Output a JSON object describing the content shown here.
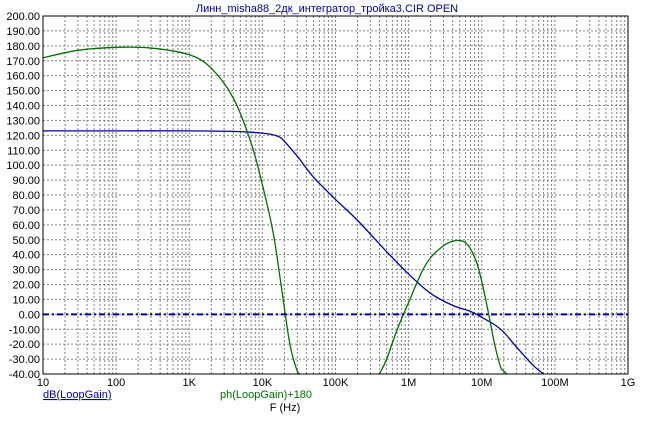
{
  "window": {
    "background": "#ffffff"
  },
  "chart_data": {
    "type": "line",
    "title": "Линн_misha88_2дк_интегратор_тройка3.CIR OPEN",
    "xlabel": "F (Hz)",
    "ylabel": "",
    "xscale": "log",
    "xlim": [
      10,
      1000000000
    ],
    "ylim": [
      -40,
      200
    ],
    "grid": true,
    "x_ticks": [
      {
        "value": 10,
        "label": "10"
      },
      {
        "value": 100,
        "label": "100"
      },
      {
        "value": 1000,
        "label": "1K"
      },
      {
        "value": 10000,
        "label": "10K"
      },
      {
        "value": 100000,
        "label": "100K"
      },
      {
        "value": 1000000,
        "label": "1M"
      },
      {
        "value": 10000000,
        "label": "10M"
      },
      {
        "value": 100000000,
        "label": "100M"
      },
      {
        "value": 1000000000,
        "label": "1G"
      }
    ],
    "y_ticks": [
      200,
      190,
      180,
      170,
      160,
      150,
      140,
      130,
      120,
      110,
      100,
      90,
      80,
      70,
      60,
      50,
      40,
      30,
      20,
      10,
      0,
      -10,
      -20,
      -30,
      -40
    ],
    "y_tick_labels": [
      "200.00",
      "190.00",
      "180.00",
      "170.00",
      "160.00",
      "150.00",
      "140.00",
      "130.00",
      "120.00",
      "110.00",
      "100.00",
      "90.00",
      "80.00",
      "70.00",
      "60.00",
      "50.00",
      "40.00",
      "30.00",
      "20.00",
      "10.00",
      "0.00",
      "-10.00",
      "-20.00",
      "-30.00",
      "-40.00"
    ],
    "series": [
      {
        "name": "dB(LoopGain)",
        "color": "#0000a0",
        "x": [
          10,
          100,
          1000,
          5000,
          12000,
          17000,
          20000,
          30000,
          50000,
          100000,
          200000,
          500000,
          1000000,
          2000000,
          4000000,
          7000000,
          10000000,
          15000000,
          20000000,
          30000000,
          50000000,
          70000000
        ],
        "y": [
          123,
          123,
          123,
          122.5,
          121,
          119,
          116,
          106,
          92,
          77,
          63,
          42,
          27,
          14,
          6,
          2,
          -2,
          -7,
          -12,
          -22,
          -34,
          -40
        ]
      },
      {
        "name": "ph(LoopGain)+180",
        "color": "#007000",
        "x": [
          10,
          30,
          100,
          300,
          1000,
          2000,
          4000,
          7000,
          10000,
          14000,
          18000,
          22000,
          25000,
          30000,
          33000
        ],
        "y": [
          172,
          177,
          179,
          178.5,
          174,
          165,
          145,
          115,
          87,
          55,
          20,
          -10,
          -25,
          -38,
          -40
        ]
      },
      {
        "name": "ph(LoopGain)+180",
        "color": "#007000",
        "x": [
          400000,
          500000,
          700000,
          1000000,
          1500000,
          2000000,
          3000000,
          4000000,
          5000000,
          6000000,
          7000000,
          8500000,
          10000000,
          12000000,
          15000000,
          18000000,
          20000000,
          22000000
        ],
        "y": [
          -40,
          -30,
          -10,
          8,
          28,
          38,
          46,
          49,
          49.5,
          48,
          44,
          35,
          22,
          4,
          -20,
          -35,
          -38,
          -40
        ]
      },
      {
        "name": "",
        "color": "#0000a0",
        "style": "dash-dot",
        "x": [
          10,
          1000000000
        ],
        "y": [
          0,
          0
        ]
      }
    ],
    "legend": [
      {
        "label": "dB(LoopGain)",
        "color": "#0000a0",
        "underline": true
      },
      {
        "label": "ph(LoopGain)+180",
        "color": "#007000",
        "underline": false
      }
    ]
  }
}
